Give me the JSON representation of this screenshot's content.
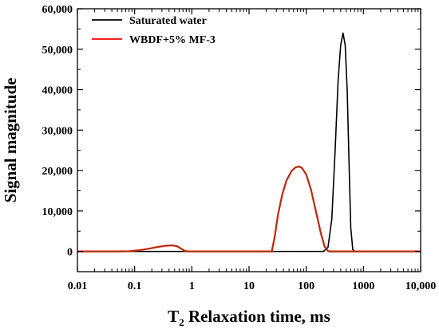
{
  "chart_data": {
    "type": "line",
    "xscale": "log",
    "xlim": [
      0.01,
      10000
    ],
    "ylim": [
      -5000,
      60000
    ],
    "grid": false,
    "legend_position": "top-left",
    "xlabel": {
      "main": "T",
      "sub": "2",
      "rest": " Relaxation time, ms"
    },
    "ylabel": "Signal magnitude",
    "x_tick_values": [
      0.01,
      0.1,
      1,
      10,
      100,
      1000,
      10000
    ],
    "x_tick_labels": [
      "0.01",
      "0.1",
      "1",
      "10",
      "100",
      "1000",
      "10,000"
    ],
    "y_tick_values": [
      0,
      10000,
      20000,
      30000,
      40000,
      50000,
      60000
    ],
    "y_tick_labels": [
      "0",
      "10,000",
      "20,000",
      "30,000",
      "40,000",
      "50,000",
      "60,000"
    ],
    "series": [
      {
        "name": "Saturated water",
        "color": "#000000",
        "x": [
          0.01,
          200,
          240,
          280,
          320,
          360,
          400,
          440,
          480,
          520,
          560,
          600,
          650,
          700,
          10000
        ],
        "y": [
          0,
          0,
          1000,
          8000,
          25000,
          42000,
          51000,
          54000,
          51000,
          40000,
          22000,
          6000,
          500,
          0,
          0
        ]
      },
      {
        "name": "WBDF+5% MF-3",
        "color": "#ff0000",
        "overlay_color": "#8b4513",
        "x": [
          0.01,
          0.05,
          0.08,
          0.12,
          0.18,
          0.25,
          0.35,
          0.45,
          0.55,
          0.65,
          0.75,
          0.85,
          1.0,
          25,
          28,
          32,
          38,
          45,
          55,
          65,
          75,
          85,
          100,
          120,
          150,
          180,
          210,
          240,
          260,
          10000
        ],
        "y": [
          0,
          0,
          50,
          300,
          700,
          1100,
          1400,
          1500,
          1300,
          700,
          150,
          0,
          0,
          0,
          3500,
          9000,
          14000,
          17500,
          19800,
          20800,
          21000,
          20600,
          19000,
          15500,
          9500,
          4500,
          1200,
          100,
          0,
          0
        ]
      }
    ]
  }
}
